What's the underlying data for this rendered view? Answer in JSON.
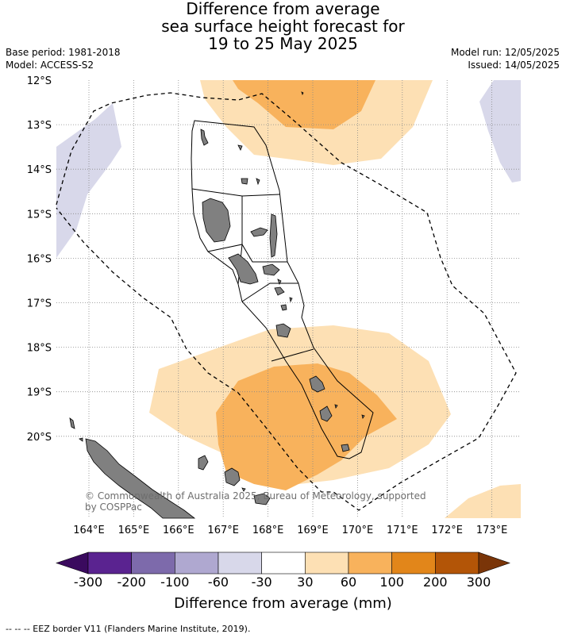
{
  "title": {
    "line1": "Difference from average",
    "line2": "sea surface height forecast for",
    "line3": "19 to 25 May 2025"
  },
  "meta_left": {
    "base_period": "Base period: 1981-2018",
    "model": "Model: ACCESS-S2"
  },
  "meta_right": {
    "model_run": "Model run: 12/05/2025",
    "issued": "Issued: 14/05/2025"
  },
  "lat_labels": [
    "12°S",
    "13°S",
    "14°S",
    "15°S",
    "16°S",
    "17°S",
    "18°S",
    "19°S",
    "20°S"
  ],
  "lon_labels": [
    "164°E",
    "165°E",
    "166°E",
    "167°E",
    "168°E",
    "169°E",
    "170°E",
    "171°E",
    "172°E",
    "173°E"
  ],
  "copyright_line1": "© Commonwealth of Australia 2025, Bureau of Meteorology, supported",
  "copyright_line2": "by COSPPac",
  "colorbar": {
    "labels": [
      "-300",
      "-200",
      "-100",
      "-60",
      "-30",
      "30",
      "60",
      "100",
      "200",
      "300"
    ],
    "colors": [
      "#3a0a5e",
      "#5a2390",
      "#7d6aab",
      "#afa8d0",
      "#d8d8ea",
      "#ffffff",
      "#fde0b4",
      "#f8b25c",
      "#e2861a",
      "#b35507",
      "#7a3508"
    ],
    "title": "Difference from average (mm)"
  },
  "footer": "--  --  -- EEZ border V11 (Flanders Marine Institute, 2019).",
  "colors": {
    "land": "#808080",
    "light_orange": "#fde0b4",
    "mid_orange": "#f8b25c",
    "dark_orange": "#f3a13a",
    "light_purple": "#d8d8ea"
  }
}
